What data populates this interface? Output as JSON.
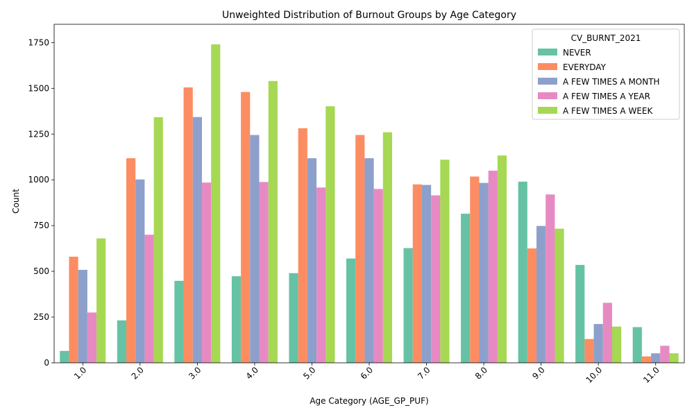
{
  "chart_data": {
    "type": "bar",
    "title": "Unweighted Distribution of Burnout Groups by Age Category",
    "xlabel": "Age Category (AGE_GP_PUF)",
    "ylabel": "Count",
    "ylim": [
      0,
      1850
    ],
    "yticks": [
      0,
      250,
      500,
      750,
      1000,
      1250,
      1500,
      1750
    ],
    "categories": [
      "1.0",
      "2.0",
      "3.0",
      "4.0",
      "5.0",
      "6.0",
      "7.0",
      "8.0",
      "9.0",
      "10.0",
      "11.0"
    ],
    "legend_title": "CV_BURNT_2021",
    "legend_position": "top-right",
    "grid": false,
    "series": [
      {
        "name": "NEVER",
        "color": "#66c2a5",
        "values": [
          65,
          232,
          448,
          473,
          490,
          570,
          627,
          815,
          990,
          535,
          195
        ]
      },
      {
        "name": "EVERYDAY",
        "color": "#fc8d62",
        "values": [
          580,
          1118,
          1505,
          1480,
          1282,
          1245,
          975,
          1018,
          625,
          130,
          35
        ]
      },
      {
        "name": "A FEW TIMES A MONTH",
        "color": "#8da0cb",
        "values": [
          508,
          1002,
          1343,
          1245,
          1118,
          1118,
          972,
          983,
          748,
          212,
          52
        ]
      },
      {
        "name": "A FEW TIMES A YEAR",
        "color": "#e78ac3",
        "values": [
          275,
          700,
          985,
          988,
          958,
          950,
          915,
          1050,
          920,
          328,
          93
        ]
      },
      {
        "name": "A FEW TIMES A WEEK",
        "color": "#a6d854",
        "values": [
          680,
          1342,
          1740,
          1540,
          1402,
          1260,
          1110,
          1133,
          733,
          198,
          52
        ]
      }
    ]
  }
}
